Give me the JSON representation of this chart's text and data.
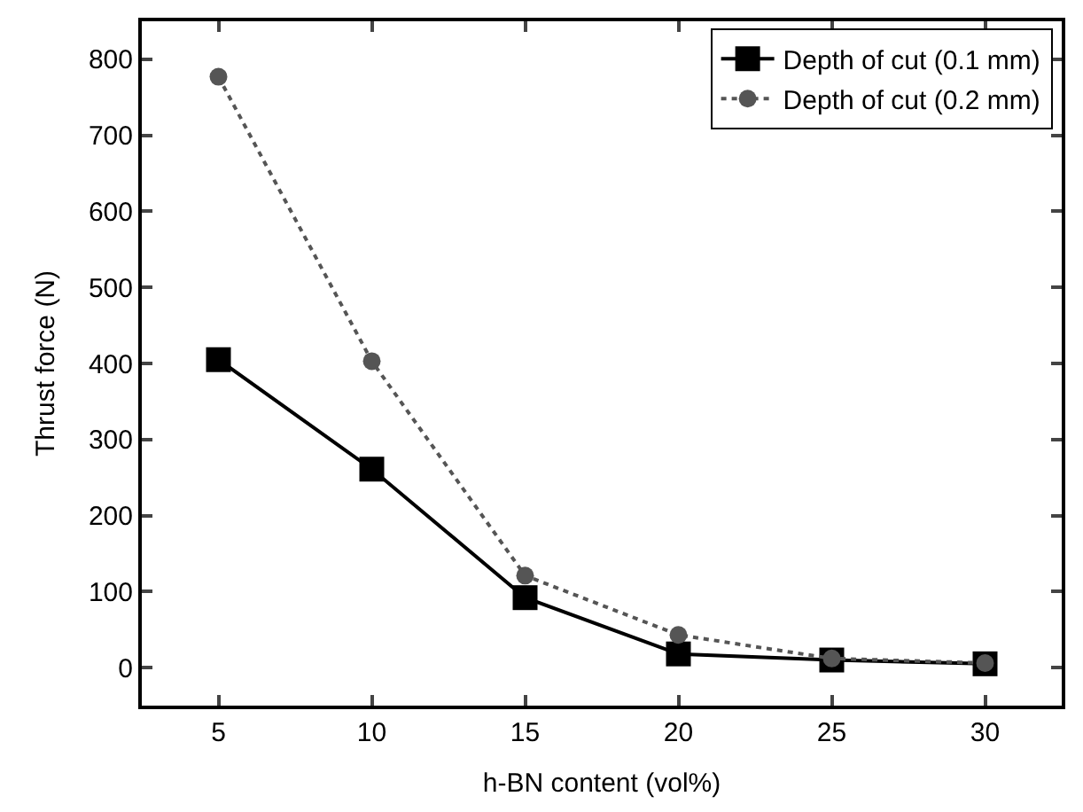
{
  "chart_data": {
    "type": "line",
    "xlabel": "h-BN content (vol%)",
    "ylabel": "Thrust force (N)",
    "x": [
      5,
      10,
      15,
      20,
      25,
      30
    ],
    "series": [
      {
        "name": "Depth of cut (0.1 mm)",
        "color": "#000000",
        "marker": "square",
        "line_style": "solid",
        "values": [
          405,
          261,
          92,
          18,
          10,
          5
        ]
      },
      {
        "name": "Depth of cut (0.2 mm)",
        "color": "#555555",
        "marker": "circle",
        "line_style": "dotted",
        "values": [
          777,
          403,
          121,
          43,
          12,
          6
        ]
      }
    ],
    "xlim": [
      2.5,
      32.5
    ],
    "xticks": [
      5,
      10,
      15,
      20,
      25,
      30
    ],
    "ylim": [
      -50,
      850
    ],
    "yticks": [
      0,
      100,
      200,
      300,
      400,
      500,
      600,
      700,
      800
    ],
    "legend": "top right"
  }
}
